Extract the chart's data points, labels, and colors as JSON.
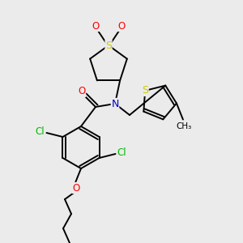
{
  "bg_color": "#ebebeb",
  "figsize": [
    3.0,
    3.0
  ],
  "dpi": 100,
  "atom_colors": {
    "O": "#ff0000",
    "N": "#0000cc",
    "S": "#cccc00",
    "Cl": "#00bb00",
    "C": "#000000"
  }
}
